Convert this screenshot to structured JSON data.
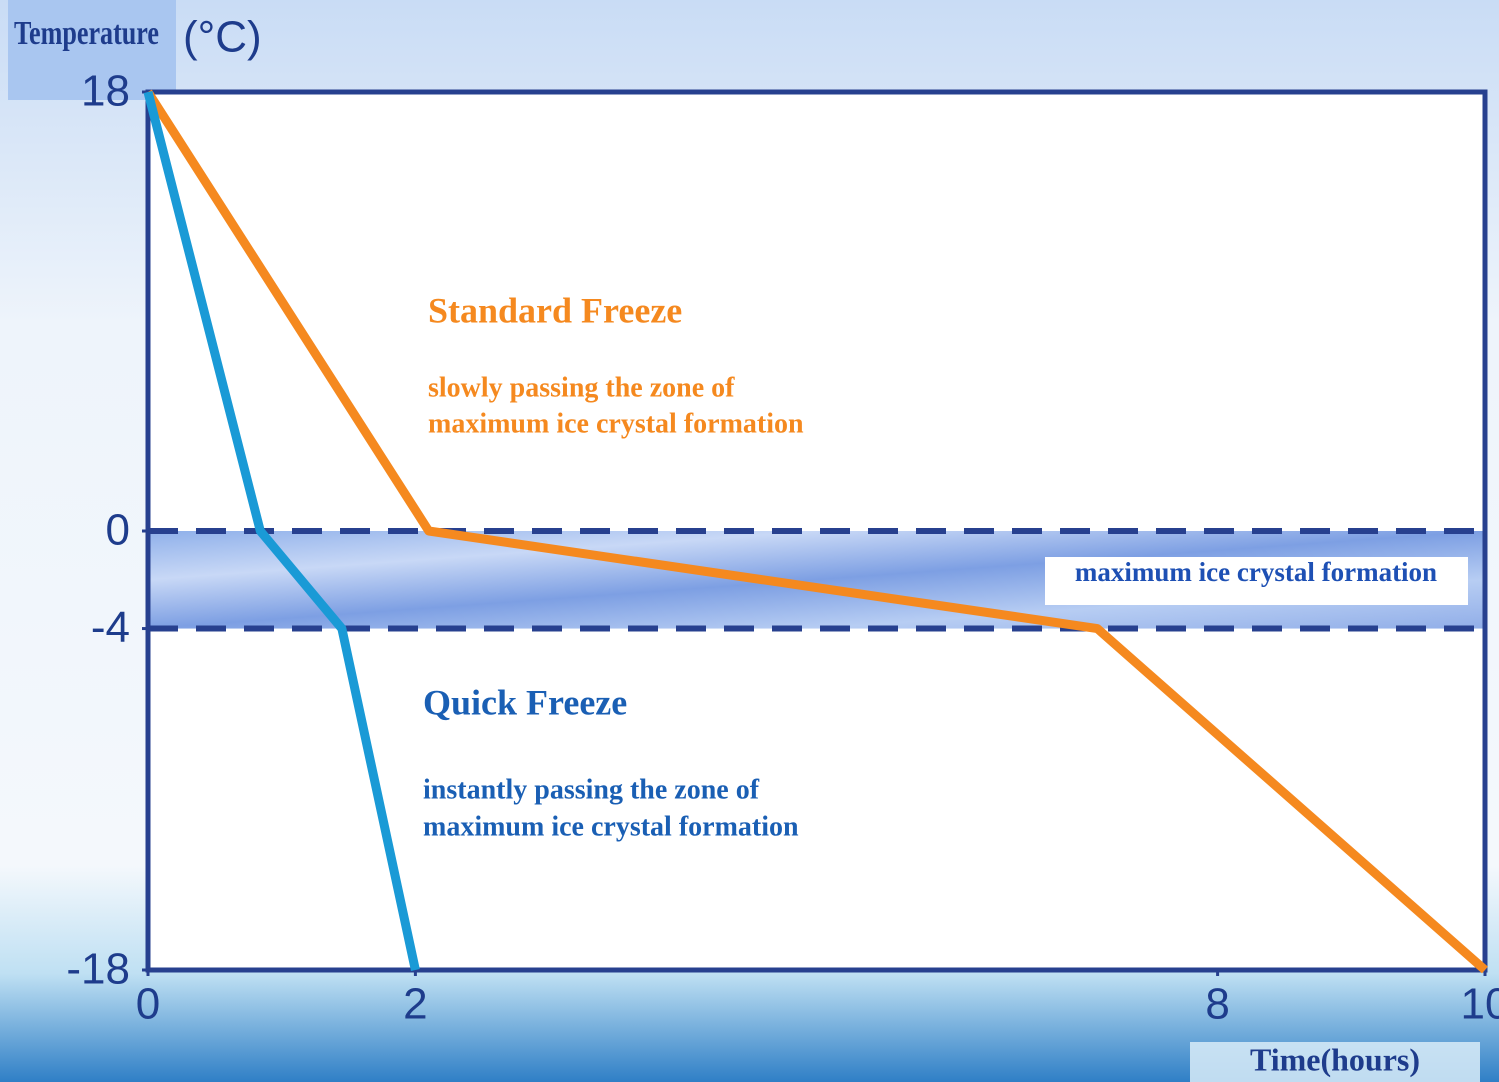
{
  "chart_data": {
    "type": "line",
    "y_label": "Temperature",
    "y_unit": "(°C)",
    "x_label": "Time(hours)",
    "xlim": [
      0,
      10
    ],
    "xticks": [
      0,
      2,
      8,
      10
    ],
    "ylim": [
      -18,
      18
    ],
    "yticks": [
      18,
      0,
      -4,
      -18
    ],
    "zone": {
      "label": "maximum ice crystal formation",
      "range": [
        -4,
        0
      ]
    },
    "series": [
      {
        "name": "Standard Freeze",
        "color": "#f5891f",
        "description": [
          "slowly passing the zone of",
          "maximum ice crystal formation"
        ],
        "x": [
          0,
          2.1,
          7.1,
          10
        ],
        "values": [
          18,
          0,
          -4,
          -18
        ]
      },
      {
        "name": "Quick Freeze",
        "color": "#1a9ad6",
        "description": [
          "instantly passing the zone of",
          "maximum ice crystal formation"
        ],
        "x": [
          0,
          0.84,
          1.45,
          2
        ],
        "values": [
          18,
          0,
          -4,
          -18
        ]
      }
    ]
  }
}
